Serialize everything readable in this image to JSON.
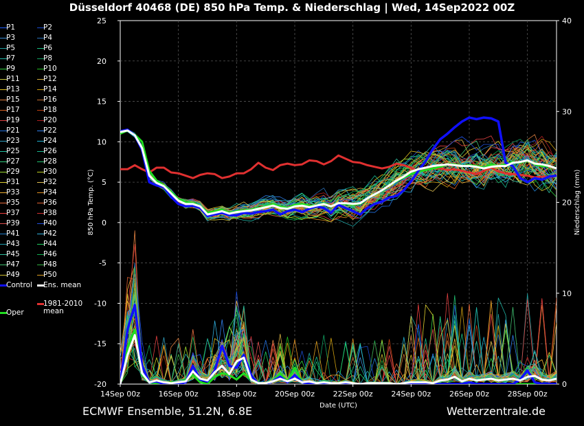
{
  "title": "Düsseldorf 40468 (DE)  850 hPa Temp. & Niederschlag | Wed, 14Sep2022 00Z",
  "footer": {
    "left": "ECMWF Ensemble, 51.2N, 6.8E",
    "right": "Wetterzentrale.de"
  },
  "legend": {
    "members": [
      {
        "label": "P1",
        "color": "#1f5fff"
      },
      {
        "label": "P2",
        "color": "#1a4bd0"
      },
      {
        "label": "P3",
        "color": "#3a8fd8"
      },
      {
        "label": "P4",
        "color": "#2a6fb8"
      },
      {
        "label": "P5",
        "color": "#1ea0a0"
      },
      {
        "label": "P6",
        "color": "#18c080"
      },
      {
        "label": "P7",
        "color": "#20b8a8"
      },
      {
        "label": "P8",
        "color": "#10a060"
      },
      {
        "label": "P9",
        "color": "#30d040"
      },
      {
        "label": "P10",
        "color": "#20c020"
      },
      {
        "label": "P11",
        "color": "#c8c840"
      },
      {
        "label": "P12",
        "color": "#d8b040"
      },
      {
        "label": "P13",
        "color": "#e0c020"
      },
      {
        "label": "P14",
        "color": "#d0a010"
      },
      {
        "label": "P15",
        "color": "#e08040"
      },
      {
        "label": "P16",
        "color": "#c87030"
      },
      {
        "label": "P17",
        "color": "#d86020"
      },
      {
        "label": "P18",
        "color": "#c04010"
      },
      {
        "label": "P19",
        "color": "#e04040"
      },
      {
        "label": "P20",
        "color": "#b02020"
      },
      {
        "label": "P21",
        "color": "#2070e0"
      },
      {
        "label": "P22",
        "color": "#3080f0"
      },
      {
        "label": "P23",
        "color": "#30a0c0"
      },
      {
        "label": "P24",
        "color": "#20b0d0"
      },
      {
        "label": "P25",
        "color": "#20c0a0"
      },
      {
        "label": "P26",
        "color": "#18b890"
      },
      {
        "label": "P27",
        "color": "#30d080"
      },
      {
        "label": "P28",
        "color": "#20c070"
      },
      {
        "label": "P29",
        "color": "#a0e030"
      },
      {
        "label": "P30",
        "color": "#c0d020"
      },
      {
        "label": "P31",
        "color": "#e0d030"
      },
      {
        "label": "P32",
        "color": "#e0c050"
      },
      {
        "label": "P33",
        "color": "#f0b030"
      },
      {
        "label": "P34",
        "color": "#e09020"
      },
      {
        "label": "P35",
        "color": "#f07040"
      },
      {
        "label": "P36",
        "color": "#e06030"
      },
      {
        "label": "P37",
        "color": "#f04040"
      },
      {
        "label": "P38",
        "color": "#d03030"
      },
      {
        "label": "P39",
        "color": "#e05050"
      },
      {
        "label": "P40",
        "color": "#2050e0"
      },
      {
        "label": "P41",
        "color": "#2080d0"
      },
      {
        "label": "P42",
        "color": "#30b0e0"
      },
      {
        "label": "P43",
        "color": "#20a0b0"
      },
      {
        "label": "P44",
        "color": "#20d060"
      },
      {
        "label": "P45",
        "color": "#30c0a0"
      },
      {
        "label": "P46",
        "color": "#10b050"
      },
      {
        "label": "P47",
        "color": "#40c070"
      },
      {
        "label": "P48",
        "color": "#30b040"
      },
      {
        "label": "P49",
        "color": "#d0c030"
      },
      {
        "label": "P50",
        "color": "#e0a020"
      }
    ],
    "control": {
      "label": "Control",
      "color": "#1010ff"
    },
    "ens_mean": {
      "label": "Ens. mean",
      "color": "#ffffff"
    },
    "climate": {
      "label_line1": "1981-2010",
      "label_line2": "mean",
      "color": "#e03030"
    },
    "oper": {
      "label": "Oper",
      "color": "#20dd20"
    }
  },
  "chart_data": {
    "type": "line",
    "xlabel": "Date (UTC)",
    "ylabel": "850 hPa Temp. (°C)",
    "ylabel_right": "Niederschlag (mm)",
    "ylim": [
      -20,
      25
    ],
    "ylim_right": [
      0,
      40
    ],
    "yticks": [
      25,
      20,
      15,
      10,
      5,
      0,
      -5,
      -10,
      -15,
      -20
    ],
    "yticks_right": [
      40,
      30,
      20,
      10,
      0
    ],
    "xlim_hours": [
      0,
      360
    ],
    "xticks": [
      {
        "label": "14Sep 00z",
        "hour": 0
      },
      {
        "label": "16Sep 00z",
        "hour": 48
      },
      {
        "label": "18Sep 00z",
        "hour": 96
      },
      {
        "label": "20Sep 00z",
        "hour": 144
      },
      {
        "label": "22Sep 00z",
        "hour": 192
      },
      {
        "label": "24Sep 00z",
        "hour": 240
      },
      {
        "label": "26Sep 00z",
        "hour": 288
      },
      {
        "label": "28Sep 00z",
        "hour": 336
      }
    ],
    "grid": true,
    "temp_hours": [
      0,
      6,
      12,
      18,
      24,
      30,
      36,
      42,
      48,
      54,
      60,
      66,
      72,
      78,
      84,
      90,
      96,
      102,
      108,
      114,
      120,
      126,
      132,
      138,
      144,
      150,
      156,
      162,
      168,
      174,
      180,
      186,
      192,
      198,
      204,
      210,
      216,
      222,
      228,
      234,
      240,
      246,
      252,
      258,
      264,
      270,
      276,
      282,
      288,
      294,
      300,
      306,
      312,
      318,
      324,
      330,
      336,
      342,
      348,
      354,
      360
    ],
    "series": [
      {
        "name": "1981-2010 mean",
        "role": "climate",
        "values": [
          6.6,
          6.6,
          7.1,
          6.6,
          6.2,
          6.8,
          6.8,
          6.2,
          6.1,
          5.8,
          5.5,
          5.9,
          6.1,
          6.0,
          5.5,
          5.7,
          6.1,
          6.1,
          6.6,
          7.4,
          6.8,
          6.5,
          7.1,
          7.3,
          7.1,
          7.2,
          7.7,
          7.6,
          7.2,
          7.6,
          8.3,
          7.9,
          7.5,
          7.4,
          7.1,
          6.9,
          6.7,
          6.9,
          7.3,
          7.1,
          6.8,
          6.3,
          6.6,
          6.8,
          6.7,
          6.5,
          6.6,
          6.4,
          6.2,
          6.0,
          6.4,
          6.8,
          6.3,
          6.1,
          6.0,
          5.9,
          5.8,
          5.6,
          5.7,
          5.6,
          5.8
        ]
      },
      {
        "name": "Control",
        "role": "control",
        "values": [
          11.3,
          11.5,
          10.8,
          9.0,
          5.0,
          4.6,
          4.4,
          3.2,
          2.3,
          2.0,
          2.1,
          1.8,
          0.8,
          1.0,
          1.2,
          0.9,
          0.9,
          1.2,
          1.1,
          1.3,
          1.4,
          1.6,
          1.0,
          1.4,
          1.6,
          1.3,
          1.7,
          2.0,
          1.8,
          1.2,
          2.2,
          1.8,
          1.4,
          1.0,
          1.8,
          2.3,
          2.6,
          3.1,
          3.3,
          4.0,
          5.1,
          6.4,
          7.6,
          9.1,
          10.3,
          11.0,
          11.8,
          12.5,
          13.0,
          12.8,
          13.0,
          12.9,
          12.5,
          7.4,
          7.0,
          5.5,
          5.0,
          5.5,
          5.3,
          5.7,
          5.8
        ]
      },
      {
        "name": "Oper",
        "role": "oper",
        "values": [
          11.0,
          11.4,
          10.9,
          10.0,
          6.4,
          5.2,
          4.6,
          3.8,
          2.9,
          2.5,
          2.4,
          2.0,
          1.2,
          1.4,
          1.6,
          1.2,
          1.4,
          1.5,
          1.6,
          1.8,
          2.0,
          2.3,
          2.0,
          1.8,
          2.2,
          2.3,
          2.1,
          2.1,
          2.4,
          2.0,
          2.4,
          2.3,
          2.2,
          2.3,
          3.0,
          3.5,
          4.0,
          4.6,
          5.1,
          5.6,
          6.0,
          6.3,
          6.5,
          6.7,
          6.9,
          7.2,
          7.2,
          7.0,
          7.1,
          7.0,
          6.8,
          7.2,
          7.0,
          7.2,
          7.5,
          7.4,
          7.7,
          7.2,
          7.0,
          7.0,
          6.7
        ]
      },
      {
        "name": "Ens. mean",
        "role": "mean",
        "values": [
          11.2,
          11.4,
          10.8,
          9.2,
          5.8,
          4.9,
          4.5,
          3.6,
          2.7,
          2.3,
          2.3,
          2.0,
          1.0,
          1.2,
          1.4,
          1.1,
          1.3,
          1.4,
          1.5,
          1.7,
          1.9,
          2.1,
          1.8,
          1.7,
          2.0,
          2.1,
          1.9,
          2.1,
          2.3,
          2.0,
          2.4,
          2.4,
          2.3,
          2.4,
          3.0,
          3.5,
          4.0,
          4.6,
          5.2,
          5.7,
          6.3,
          6.6,
          6.8,
          7.0,
          7.1,
          7.2,
          7.1,
          7.0,
          7.0,
          6.9,
          6.7,
          6.9,
          7.0,
          7.0,
          7.4,
          7.5,
          7.7,
          7.3,
          7.2,
          7.0,
          6.7
        ]
      }
    ],
    "precip_hours": [
      0,
      6,
      12,
      18,
      24,
      30,
      36,
      42,
      48,
      54,
      60,
      66,
      72,
      78,
      84,
      90,
      96,
      102,
      108,
      114,
      120,
      126,
      132,
      138,
      144,
      150,
      156,
      162,
      168,
      174,
      180,
      186,
      192,
      198,
      204,
      210,
      216,
      222,
      228,
      234,
      240,
      246,
      252,
      258,
      264,
      270,
      276,
      282,
      288,
      294,
      300,
      306,
      312,
      318,
      324,
      330,
      336,
      342,
      348,
      354,
      360
    ],
    "precip_series": [
      {
        "name": "Control",
        "role": "control",
        "values": [
          0.0,
          6.0,
          8.7,
          2.0,
          0.2,
          0.3,
          0.0,
          0.0,
          0.0,
          0.2,
          2.0,
          0.5,
          0.3,
          1.5,
          4.2,
          2.0,
          1.8,
          3.2,
          1.0,
          0.0,
          0.0,
          0.3,
          0.8,
          0.2,
          1.0,
          0.2,
          0.0,
          0.0,
          0.0,
          0.1,
          0.0,
          0.0,
          0.0,
          0.0,
          0.0,
          0.0,
          0.0,
          0.0,
          0.0,
          0.0,
          0.0,
          0.0,
          0.0,
          0.0,
          0.0,
          0.0,
          0.0,
          0.0,
          0.2,
          0.0,
          0.0,
          0.0,
          0.0,
          0.0,
          0.0,
          0.5,
          1.5,
          0.2,
          0.0,
          0.0,
          0.0
        ]
      },
      {
        "name": "Oper",
        "role": "oper",
        "values": [
          0.0,
          4.0,
          6.0,
          1.0,
          0.2,
          0.0,
          0.0,
          0.2,
          0.0,
          0.5,
          1.0,
          0.2,
          0.0,
          0.8,
          1.2,
          1.0,
          0.5,
          1.2,
          0.5,
          0.0,
          0.0,
          0.3,
          1.2,
          0.3,
          1.8,
          0.2,
          0.0,
          0.0,
          0.0,
          0.0,
          0.0,
          0.0,
          0.0,
          0.0,
          0.0,
          0.0,
          0.0,
          0.0,
          0.0,
          0.0,
          0.0,
          0.0,
          0.0,
          0.0,
          0.0,
          0.0,
          0.0,
          0.0,
          0.0,
          0.0,
          0.0,
          0.0,
          0.0,
          0.0,
          0.0,
          0.0,
          0.0,
          0.0,
          0.0,
          0.0,
          0.0
        ]
      },
      {
        "name": "Ens. mean",
        "role": "mean",
        "values": [
          0.0,
          3.2,
          5.4,
          1.2,
          0.2,
          0.4,
          0.2,
          0.1,
          0.2,
          0.3,
          1.4,
          0.6,
          0.4,
          1.3,
          2.0,
          1.1,
          2.5,
          2.9,
          0.5,
          0.1,
          0.1,
          0.3,
          0.6,
          0.3,
          0.6,
          0.2,
          0.3,
          0.1,
          0.2,
          0.1,
          0.1,
          0.2,
          0.1,
          0.0,
          0.1,
          0.1,
          0.1,
          0.1,
          0.0,
          0.1,
          0.2,
          0.2,
          0.2,
          0.1,
          0.4,
          0.5,
          0.8,
          0.3,
          0.6,
          0.4,
          0.5,
          0.6,
          0.4,
          0.5,
          0.6,
          0.4,
          0.8,
          0.9,
          0.5,
          0.4,
          0.6
        ]
      }
    ]
  }
}
